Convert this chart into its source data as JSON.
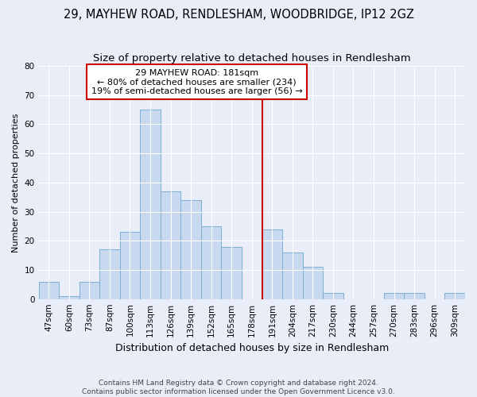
{
  "title1": "29, MAYHEW ROAD, RENDLESHAM, WOODBRIDGE, IP12 2GZ",
  "title2": "Size of property relative to detached houses in Rendlesham",
  "xlabel": "Distribution of detached houses by size in Rendlesham",
  "ylabel": "Number of detached properties",
  "footnote1": "Contains HM Land Registry data © Crown copyright and database right 2024.",
  "footnote2": "Contains public sector information licensed under the Open Government Licence v3.0.",
  "bar_labels": [
    "47sqm",
    "60sqm",
    "73sqm",
    "87sqm",
    "100sqm",
    "113sqm",
    "126sqm",
    "139sqm",
    "152sqm",
    "165sqm",
    "178sqm",
    "191sqm",
    "204sqm",
    "217sqm",
    "230sqm",
    "244sqm",
    "257sqm",
    "270sqm",
    "283sqm",
    "296sqm",
    "309sqm"
  ],
  "bar_values": [
    6,
    1,
    6,
    17,
    23,
    65,
    37,
    34,
    25,
    18,
    0,
    24,
    16,
    11,
    2,
    0,
    0,
    2,
    2,
    0,
    2
  ],
  "bar_color": "#c8d9ef",
  "bar_edgecolor": "#7bafd4",
  "vline_color": "#cc0000",
  "annotation_text": "29 MAYHEW ROAD: 181sqm\n← 80% of detached houses are smaller (234)\n19% of semi-detached houses are larger (56) →",
  "annotation_box_color": "#ffffff",
  "annotation_box_edgecolor": "#cc0000",
  "ylim": [
    0,
    80
  ],
  "yticks": [
    0,
    10,
    20,
    30,
    40,
    50,
    60,
    70,
    80
  ],
  "background_color": "#e8edf7",
  "grid_color": "#ffffff",
  "title1_fontsize": 10.5,
  "title2_fontsize": 9.5,
  "xlabel_fontsize": 9,
  "ylabel_fontsize": 8,
  "tick_fontsize": 7.5,
  "footnote_fontsize": 6.5,
  "annot_fontsize": 8
}
